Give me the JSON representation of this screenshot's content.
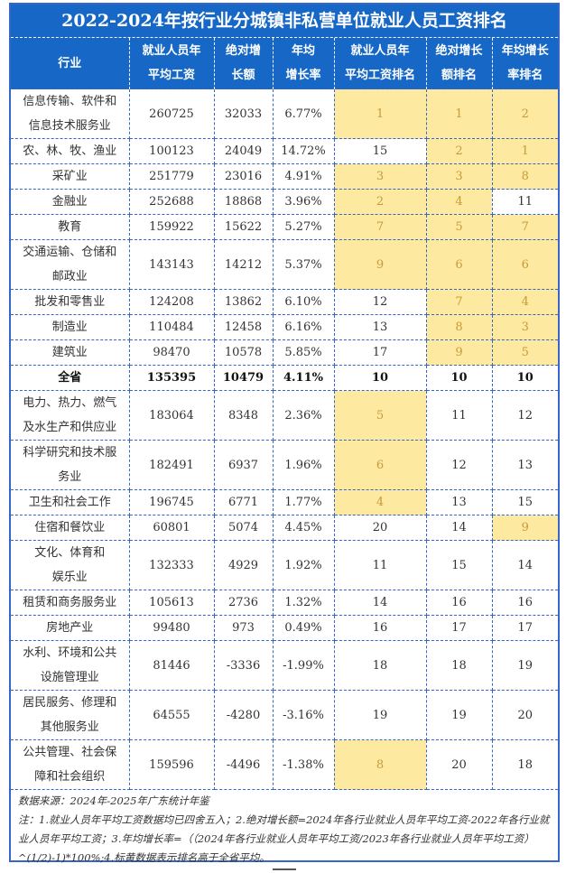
{
  "title": "2022-2024年按行业分城镇非私营单位就业人员工资排名",
  "headers": [
    "行业",
    "就业人员年平均工资",
    "绝对增长额",
    "年均增长率",
    "就业人员年平均工资排名",
    "绝对增长额排名",
    "年均增长率排名"
  ],
  "header_lines": [
    [
      "行业"
    ],
    [
      "就业人员年",
      "平均工资"
    ],
    [
      "绝对增",
      "长额"
    ],
    [
      "年均",
      "增长率"
    ],
    [
      "就业人员年",
      "平均工资排名"
    ],
    [
      "绝对增长",
      "额排名"
    ],
    [
      "年均增长",
      "率排名"
    ]
  ],
  "colors": {
    "header_bg": "#1667c6",
    "highlight": "#fde9a0",
    "highlight_text": "#c79a3a",
    "border": "#3566c8"
  },
  "rows": [
    {
      "name": [
        "信息传输、软件和",
        "信息技术服务业"
      ],
      "wage": "260725",
      "abs": "32033",
      "rate": "6.77%",
      "r1": "1",
      "r2": "1",
      "r3": "2"
    },
    {
      "name": [
        "农、林、牧、渔业"
      ],
      "wage": "100123",
      "abs": "24049",
      "rate": "14.72%",
      "r1": "15",
      "r2": "2",
      "r3": "1"
    },
    {
      "name": [
        "采矿业"
      ],
      "wage": "251779",
      "abs": "23016",
      "rate": "4.91%",
      "r1": "3",
      "r2": "3",
      "r3": "8"
    },
    {
      "name": [
        "金融业"
      ],
      "wage": "252688",
      "abs": "18868",
      "rate": "3.96%",
      "r1": "2",
      "r2": "4",
      "r3": "11"
    },
    {
      "name": [
        "教育"
      ],
      "wage": "159922",
      "abs": "15622",
      "rate": "5.27%",
      "r1": "7",
      "r2": "5",
      "r3": "7"
    },
    {
      "name": [
        "交通运输、仓储和",
        "邮政业"
      ],
      "wage": "143143",
      "abs": "14212",
      "rate": "5.37%",
      "r1": "9",
      "r2": "6",
      "r3": "6"
    },
    {
      "name": [
        "批发和零售业"
      ],
      "wage": "124208",
      "abs": "13862",
      "rate": "6.10%",
      "r1": "12",
      "r2": "7",
      "r3": "4"
    },
    {
      "name": [
        "制造业"
      ],
      "wage": "110484",
      "abs": "12458",
      "rate": "6.16%",
      "r1": "13",
      "r2": "8",
      "r3": "3"
    },
    {
      "name": [
        "建筑业"
      ],
      "wage": "98470",
      "abs": "10578",
      "rate": "5.85%",
      "r1": "17",
      "r2": "9",
      "r3": "5"
    },
    {
      "name": [
        "全省"
      ],
      "wage": "135395",
      "abs": "10479",
      "rate": "4.11%",
      "r1": "10",
      "r2": "10",
      "r3": "10",
      "total": true
    },
    {
      "name": [
        "电力、热力、燃气",
        "及水生产和供应业"
      ],
      "wage": "183064",
      "abs": "8348",
      "rate": "2.36%",
      "r1": "5",
      "r2": "11",
      "r3": "12"
    },
    {
      "name": [
        "科学研究和技术服",
        "务业"
      ],
      "wage": "182491",
      "abs": "6937",
      "rate": "1.96%",
      "r1": "6",
      "r2": "12",
      "r3": "13"
    },
    {
      "name": [
        "卫生和社会工作"
      ],
      "wage": "196745",
      "abs": "6771",
      "rate": "1.77%",
      "r1": "4",
      "r2": "13",
      "r3": "15"
    },
    {
      "name": [
        "住宿和餐饮业"
      ],
      "wage": "60801",
      "abs": "5074",
      "rate": "4.45%",
      "r1": "20",
      "r2": "14",
      "r3": "9"
    },
    {
      "name": [
        "文化、体育和",
        "娱乐业"
      ],
      "wage": "132333",
      "abs": "4929",
      "rate": "1.92%",
      "r1": "11",
      "r2": "15",
      "r3": "14"
    },
    {
      "name": [
        "租赁和商务服务业"
      ],
      "wage": "105613",
      "abs": "2736",
      "rate": "1.32%",
      "r1": "14",
      "r2": "16",
      "r3": "16"
    },
    {
      "name": [
        "房地产业"
      ],
      "wage": "99480",
      "abs": "973",
      "rate": "0.49%",
      "r1": "16",
      "r2": "17",
      "r3": "17"
    },
    {
      "name": [
        "水利、环境和公共",
        "设施管理业"
      ],
      "wage": "81446",
      "abs": "-3336",
      "rate": "-1.99%",
      "r1": "18",
      "r2": "18",
      "r3": "19"
    },
    {
      "name": [
        "居民服务、修理和",
        "其他服务业"
      ],
      "wage": "64555",
      "abs": "-4280",
      "rate": "-3.16%",
      "r1": "19",
      "r2": "19",
      "r3": "20"
    },
    {
      "name": [
        "公共管理、社会保",
        "障和社会组织"
      ],
      "wage": "159596",
      "abs": "-4496",
      "rate": "-1.38%",
      "r1": "8",
      "r2": "20",
      "r3": "18"
    }
  ],
  "notes": {
    "source": "数据来源：2024年-2025年广东统计年鉴",
    "note": "注：1.就业人员年平均工资数据均已四舍五入；2.绝对增长额=2024年各行业就业人员年平均工资-2022年各行业就业人员年平均工资；3.年均增长率=（（2024年各行业就业人员年平均工资/2023年各行业就业人员年平均工资）^(1/2)-1)*100%;4.标黄数据表示排名高于全省平均。"
  }
}
